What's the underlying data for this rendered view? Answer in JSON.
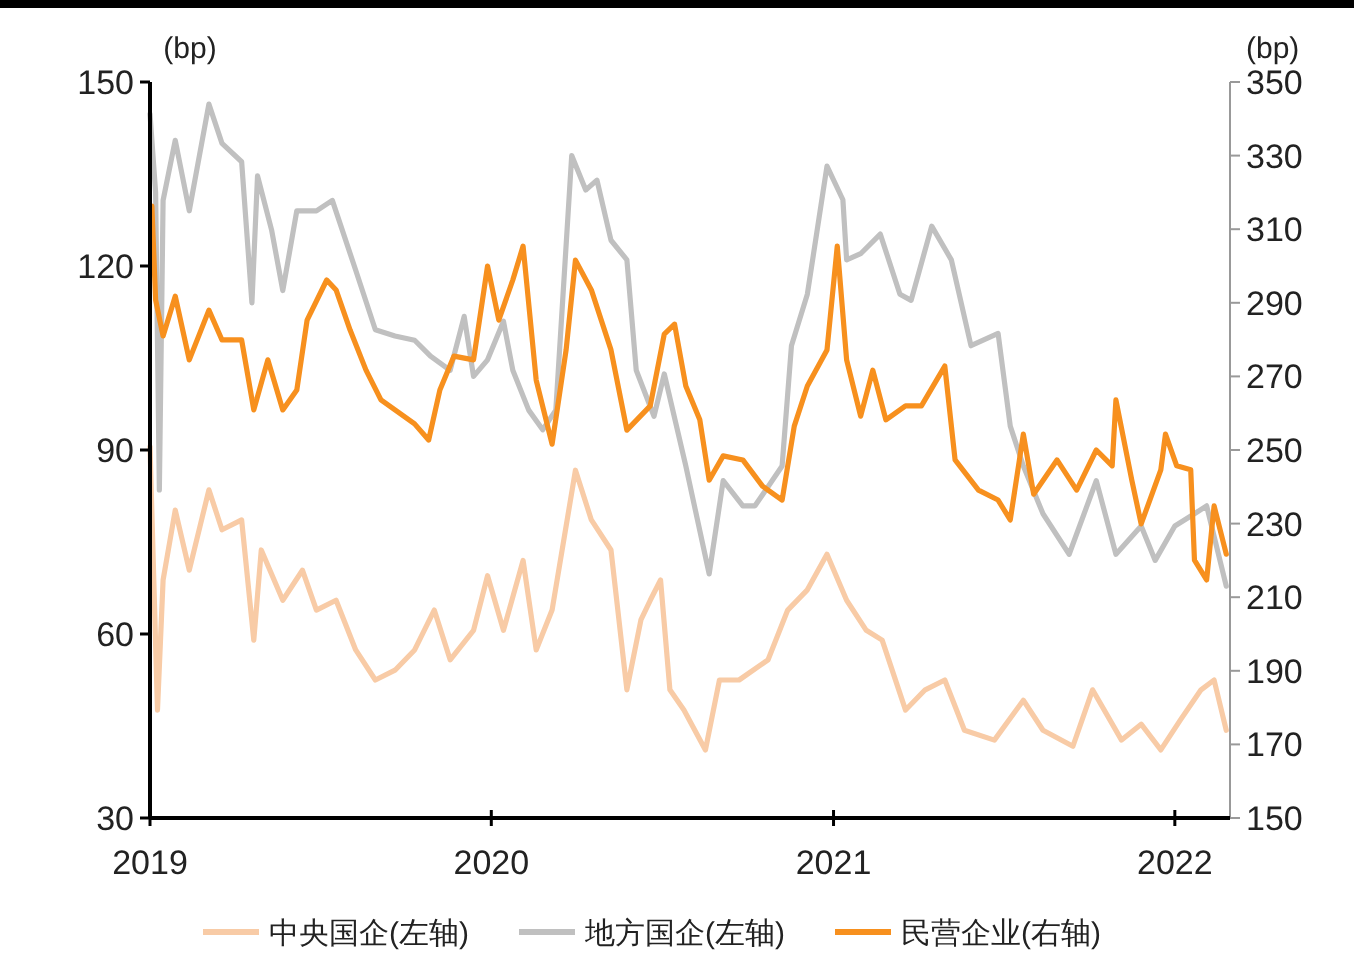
{
  "chart_data": {
    "type": "line",
    "ylabel": "(bp)",
    "y2label": "(bp)",
    "xlim": [
      "2019-01-01",
      "2022-03-01"
    ],
    "xticks": [
      "2019",
      "2020",
      "2021",
      "2022"
    ],
    "ylim": [
      30,
      150
    ],
    "yticks": [
      30,
      60,
      90,
      120,
      150
    ],
    "y2lim": [
      150,
      350
    ],
    "y2ticks": [
      150,
      170,
      190,
      210,
      230,
      250,
      270,
      290,
      310,
      330,
      350
    ],
    "grid": false,
    "legend": "bottom",
    "line_style": "solid",
    "series": [
      {
        "name": "中央国企(左轴)",
        "color": "#f8cba6",
        "x": [
          "2019-01-01",
          "2019-01-09",
          "2019-01-15",
          "2019-01-28",
          "2019-02-12",
          "2019-03-05",
          "2019-03-19",
          "2019-04-09",
          "2019-04-22",
          "2019-04-30",
          "2019-05-23",
          "2019-06-13",
          "2019-06-28",
          "2019-07-19",
          "2019-08-09",
          "2019-08-30",
          "2019-09-20",
          "2019-10-11",
          "2019-11-01",
          "2019-11-18",
          "2019-12-13",
          "2019-12-28",
          "2020-01-14",
          "2020-02-04",
          "2020-02-18",
          "2020-03-06",
          "2020-03-31",
          "2020-04-17",
          "2020-05-08",
          "2020-05-25",
          "2020-06-09",
          "2020-06-19",
          "2020-06-30",
          "2020-07-10",
          "2020-07-25",
          "2020-08-17",
          "2020-09-01",
          "2020-09-22",
          "2020-10-23",
          "2020-11-13",
          "2020-12-04",
          "2020-12-25",
          "2021-01-15",
          "2021-02-05",
          "2021-02-22",
          "2021-03-19",
          "2021-04-09",
          "2021-04-30",
          "2021-05-21",
          "2021-06-22",
          "2021-07-23",
          "2021-08-13",
          "2021-09-14",
          "2021-10-05",
          "2021-11-05",
          "2021-11-26",
          "2021-12-17",
          "2022-01-07",
          "2022-01-29",
          "2022-02-12",
          "2022-02-25"
        ],
        "values": [
          90.6,
          47.6,
          68.8,
          80.2,
          70.4,
          83.5,
          77,
          78.6,
          59,
          73.7,
          65.5,
          70.4,
          63.9,
          65.5,
          57.4,
          52.5,
          54.1,
          57.4,
          63.9,
          55.8,
          60.6,
          69.5,
          60.6,
          72,
          57.4,
          63.9,
          86.7,
          78.6,
          73.7,
          50.9,
          62.3,
          65.5,
          68.8,
          50.9,
          47.6,
          41.1,
          52.5,
          52.5,
          55.8,
          63.9,
          67.2,
          73,
          65.5,
          60.6,
          59,
          47.6,
          50.9,
          52.5,
          44.3,
          42.7,
          49.2,
          44.3,
          41.7,
          50.9,
          42.7,
          45.3,
          41.1,
          46,
          50.9,
          52.5,
          44.3
        ]
      },
      {
        "name": "地方国企(左轴)",
        "color": "#c0c0c0",
        "x": [
          "2019-01-01",
          "2019-01-07",
          "2019-01-11",
          "2019-01-15",
          "2019-01-28",
          "2019-02-12",
          "2019-03-05",
          "2019-03-19",
          "2019-04-09",
          "2019-04-20",
          "2019-04-26",
          "2019-05-11",
          "2019-05-23",
          "2019-06-07",
          "2019-06-28",
          "2019-07-15",
          "2019-08-09",
          "2019-08-30",
          "2019-09-20",
          "2019-10-11",
          "2019-10-28",
          "2019-11-18",
          "2019-12-03",
          "2019-12-13",
          "2019-12-28",
          "2020-01-14",
          "2020-01-24",
          "2020-02-10",
          "2020-02-25",
          "2020-03-10",
          "2020-03-27",
          "2020-04-11",
          "2020-04-23",
          "2020-05-08",
          "2020-05-25",
          "2020-06-04",
          "2020-06-23",
          "2020-07-04",
          "2020-07-27",
          "2020-08-21",
          "2020-09-05",
          "2020-09-26",
          "2020-10-09",
          "2020-11-07",
          "2020-11-17",
          "2020-12-04",
          "2020-12-25",
          "2021-01-11",
          "2021-01-15",
          "2021-01-30",
          "2021-02-20",
          "2021-03-13",
          "2021-03-25",
          "2021-04-16",
          "2021-05-07",
          "2021-05-28",
          "2021-06-26",
          "2021-07-09",
          "2021-07-23",
          "2021-08-13",
          "2021-09-10",
          "2021-10-09",
          "2021-10-30",
          "2021-11-26",
          "2021-12-11",
          "2022-01-01",
          "2022-01-22",
          "2022-02-04",
          "2022-02-25"
        ],
        "values": [
          144.8,
          132,
          83.5,
          130.7,
          140.5,
          129,
          146.4,
          140,
          137,
          114,
          134.7,
          125.9,
          116,
          129,
          129,
          130.7,
          119.3,
          109.6,
          108.6,
          107.9,
          105.3,
          103,
          111.8,
          102,
          104.7,
          111,
          103,
          96.5,
          93.3,
          96.5,
          138,
          132.4,
          134,
          124.2,
          121,
          103,
          95.5,
          102.4,
          87.4,
          69.8,
          85,
          80.9,
          80.9,
          87.4,
          107,
          115.4,
          136.3,
          130.8,
          121,
          122,
          125.2,
          115.4,
          114.4,
          126.5,
          121,
          107,
          109,
          93.9,
          87.4,
          79.6,
          73,
          85,
          73,
          77.6,
          72,
          77.6,
          79.6,
          80.9,
          67.8
        ]
      },
      {
        "name": "民营企业(右轴)",
        "color": "#f7901e",
        "axis": "y2",
        "x": [
          "2019-01-03",
          "2019-01-07",
          "2019-01-15",
          "2019-01-28",
          "2019-02-12",
          "2019-03-05",
          "2019-03-19",
          "2019-04-09",
          "2019-04-22",
          "2019-05-07",
          "2019-05-23",
          "2019-06-07",
          "2019-06-18",
          "2019-07-09",
          "2019-07-19",
          "2019-08-03",
          "2019-08-20",
          "2019-09-05",
          "2019-09-20",
          "2019-10-11",
          "2019-10-26",
          "2019-11-07",
          "2019-11-22",
          "2019-12-13",
          "2019-12-28",
          "2020-01-09",
          "2020-01-24",
          "2020-02-04",
          "2020-02-18",
          "2020-03-06",
          "2020-03-21",
          "2020-03-31",
          "2020-04-17",
          "2020-05-08",
          "2020-05-25",
          "2020-06-19",
          "2020-07-04",
          "2020-07-15",
          "2020-07-27",
          "2020-08-11",
          "2020-08-21",
          "2020-09-05",
          "2020-09-26",
          "2020-10-17",
          "2020-11-07",
          "2020-11-20",
          "2020-12-04",
          "2020-12-25",
          "2021-01-05",
          "2021-01-15",
          "2021-01-30",
          "2021-02-12",
          "2021-02-26",
          "2021-03-19",
          "2021-04-05",
          "2021-04-30",
          "2021-05-11",
          "2021-06-05",
          "2021-06-26",
          "2021-07-09",
          "2021-07-23",
          "2021-08-03",
          "2021-08-28",
          "2021-09-18",
          "2021-10-09",
          "2021-10-26",
          "2021-10-30",
          "2021-11-16",
          "2021-11-26",
          "2021-12-17",
          "2021-12-22",
          "2022-01-03",
          "2022-01-18",
          "2022-01-22",
          "2022-02-04",
          "2022-02-12",
          "2022-02-25"
        ],
        "values": [
          316.3,
          290.8,
          281,
          291.8,
          274.5,
          288,
          279.9,
          279.9,
          260.9,
          274.5,
          260.9,
          266.3,
          285.3,
          296.2,
          293.5,
          282.6,
          271.7,
          263.6,
          260.9,
          257.1,
          252.7,
          266.3,
          275.5,
          274.5,
          300,
          285.3,
          296.2,
          305.4,
          269,
          251.6,
          277.2,
          301.6,
          293.5,
          277.2,
          255.4,
          262,
          281.5,
          284.2,
          267.4,
          258.2,
          241.8,
          248.4,
          247.3,
          240.2,
          236.4,
          256.5,
          267.4,
          277.2,
          305.4,
          274.5,
          259.2,
          271.7,
          258.2,
          262,
          262,
          272.8,
          247.3,
          239.1,
          236.4,
          231,
          254.3,
          238,
          247.3,
          239.1,
          250,
          245.7,
          263.6,
          241.8,
          229.9,
          244.6,
          254.3,
          245.7,
          244.6,
          220.1,
          214.7,
          234.8,
          221.7
        ]
      }
    ]
  }
}
